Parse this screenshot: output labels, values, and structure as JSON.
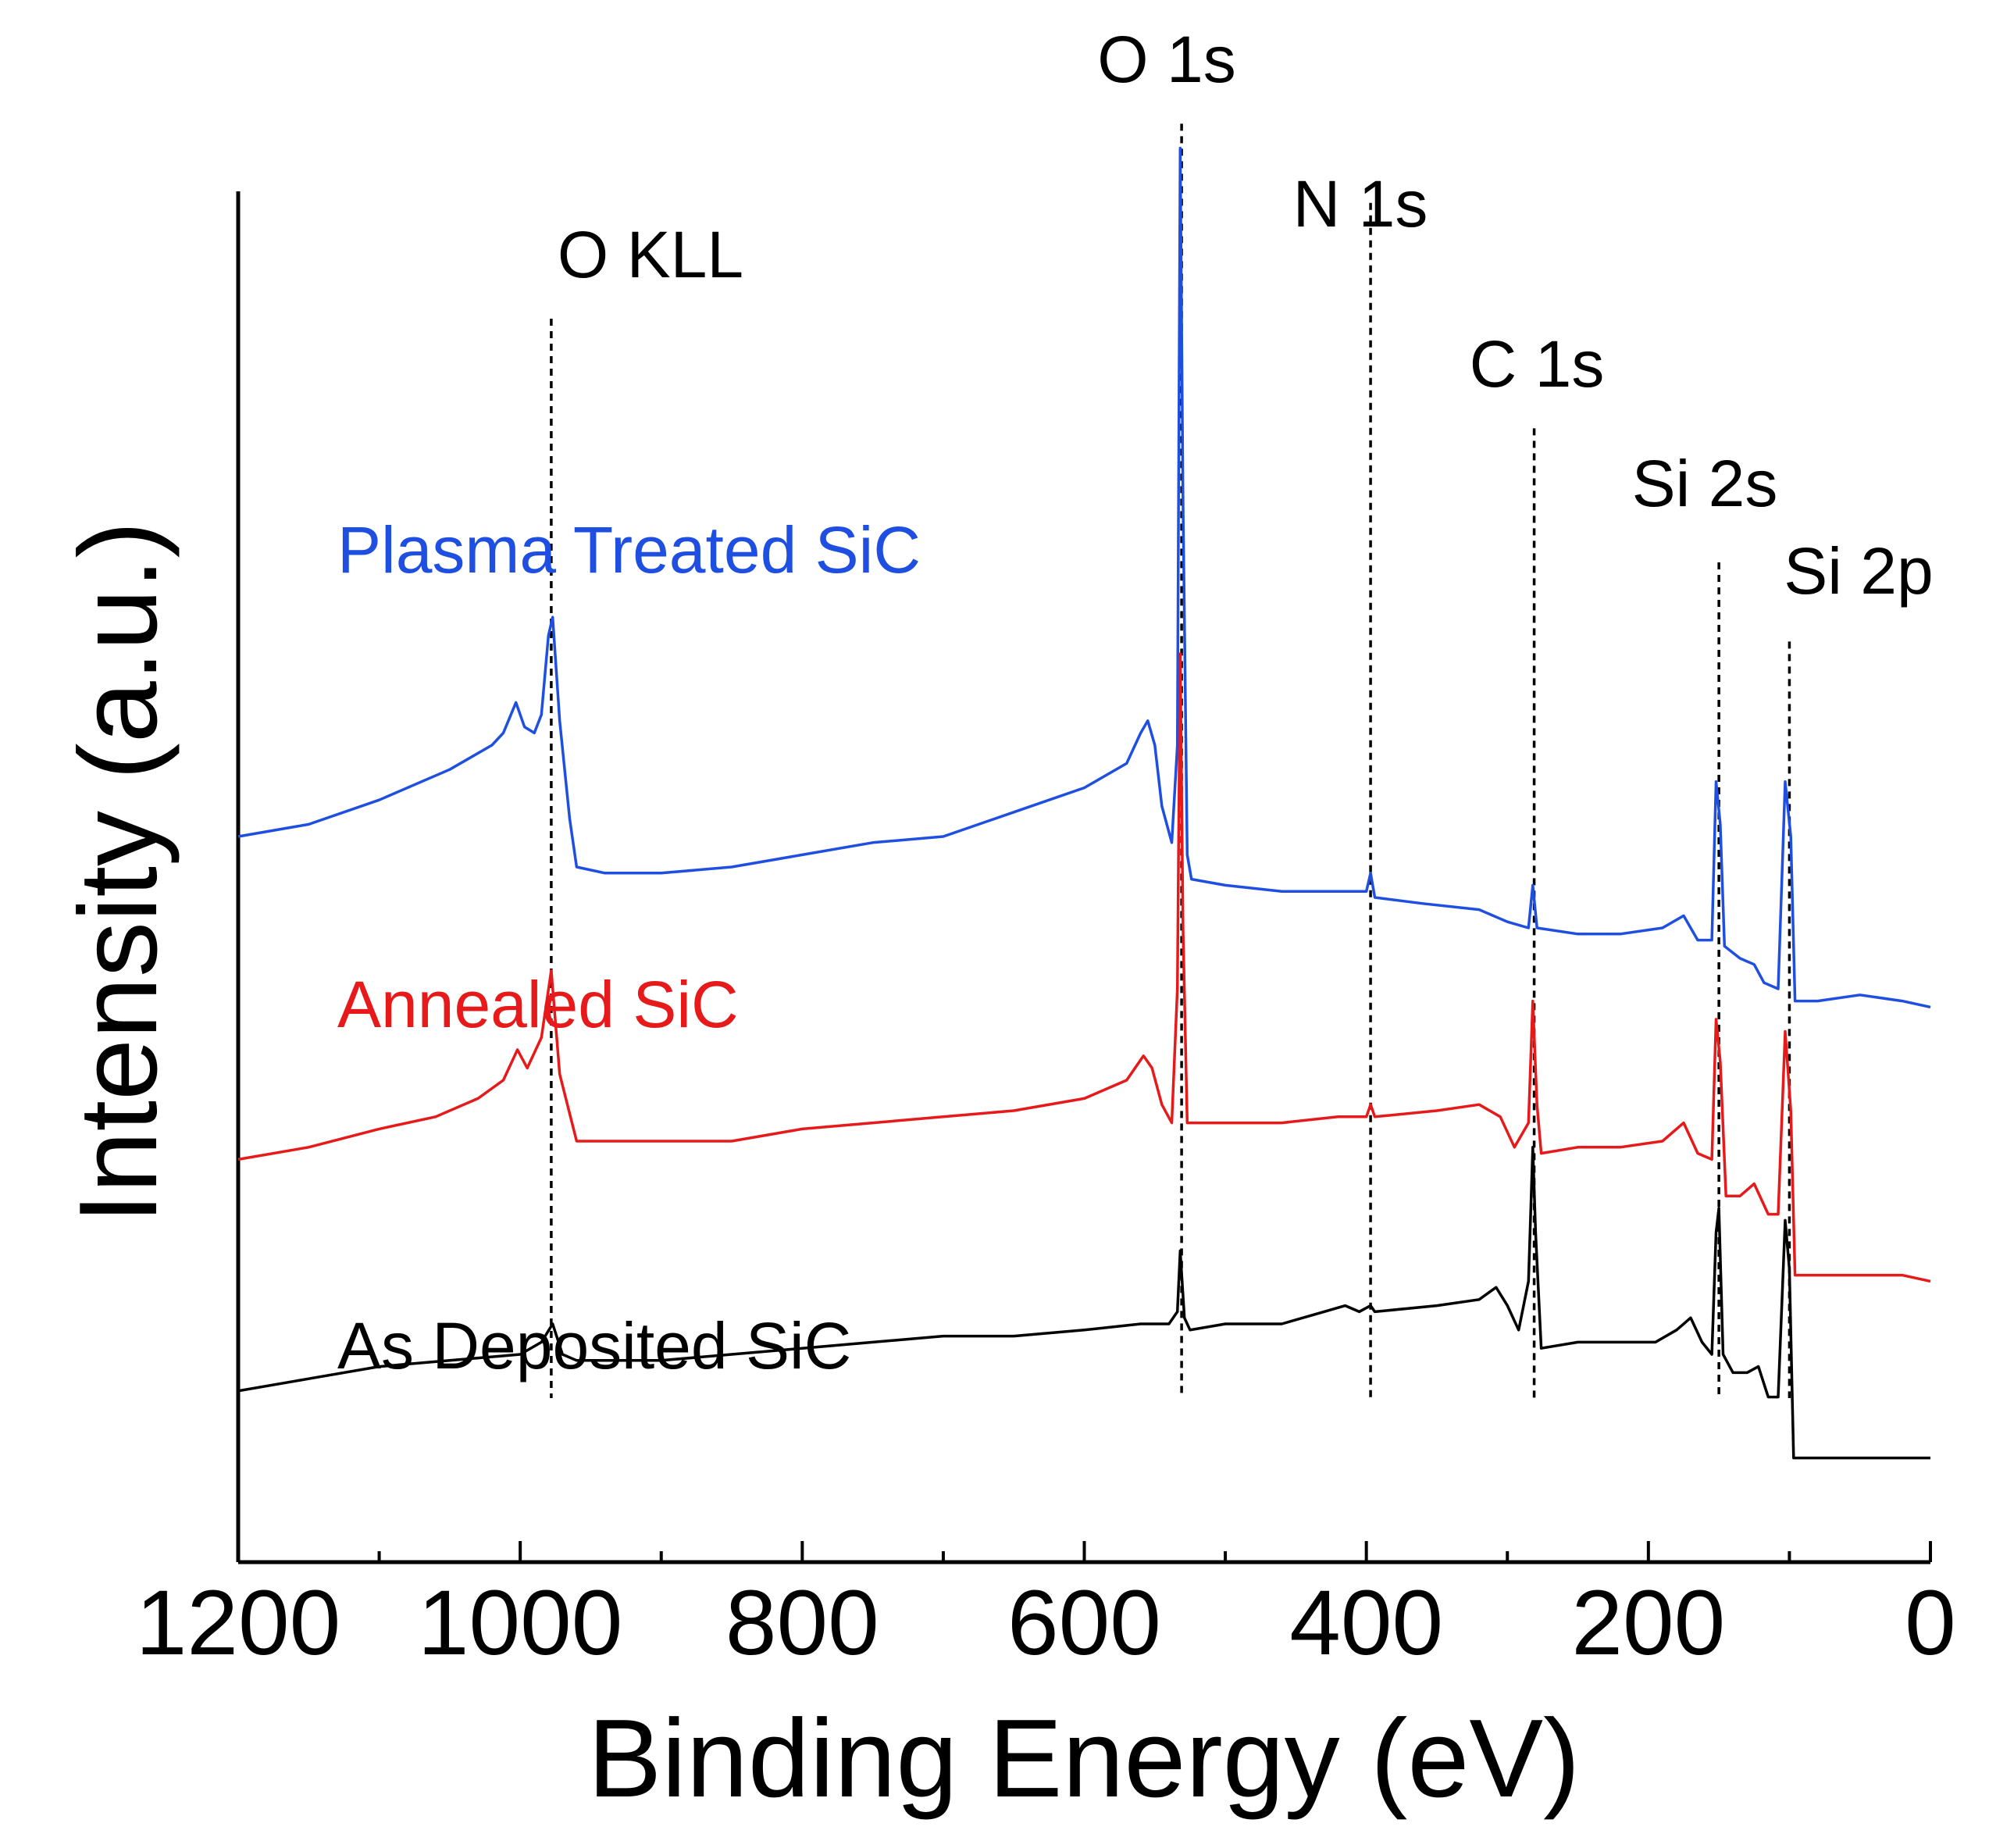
{
  "chart_data": {
    "type": "line",
    "title": "",
    "xlabel": "Binding Energy (eV)",
    "ylabel": "Intensity (a.u.)",
    "xlim": [
      1200,
      0
    ],
    "x_reversed": true,
    "x_ticks": [
      1200,
      1000,
      800,
      600,
      400,
      200,
      0
    ],
    "x_tick_labels": [
      "1200",
      "1000",
      "800",
      "600",
      "400",
      "200",
      "0"
    ],
    "y_ticks_shown": false,
    "grid": false,
    "legend": "inline labels",
    "peak_annotations": [
      {
        "label": "O KLL",
        "x": 978,
        "line_top": 1.9
      },
      {
        "label": "O 1s",
        "x": 531,
        "line_top": 2.22
      },
      {
        "label": "N 1s",
        "x": 397,
        "line_top": 2.09
      },
      {
        "label": "C 1s",
        "x": 281,
        "line_top": 1.72
      },
      {
        "label": "Si 2s",
        "x": 150,
        "line_top": 1.5
      },
      {
        "label": "Si 2p",
        "x": 100,
        "line_top": 1.37
      }
    ],
    "series": [
      {
        "name": "Plasma Treated SiC",
        "color": "#1f4fe0",
        "points": [
          [
            1200,
            1.05
          ],
          [
            1150,
            1.07
          ],
          [
            1100,
            1.11
          ],
          [
            1050,
            1.16
          ],
          [
            1020,
            1.2
          ],
          [
            1012,
            1.22
          ],
          [
            1003,
            1.27
          ],
          [
            997,
            1.23
          ],
          [
            990,
            1.22
          ],
          [
            985,
            1.25
          ],
          [
            980,
            1.38
          ],
          [
            977,
            1.41
          ],
          [
            972,
            1.24
          ],
          [
            965,
            1.08
          ],
          [
            960,
            1.0
          ],
          [
            940,
            0.99
          ],
          [
            900,
            0.99
          ],
          [
            850,
            1.0
          ],
          [
            800,
            1.02
          ],
          [
            750,
            1.04
          ],
          [
            700,
            1.05
          ],
          [
            650,
            1.09
          ],
          [
            600,
            1.13
          ],
          [
            570,
            1.17
          ],
          [
            560,
            1.22
          ],
          [
            555,
            1.24
          ],
          [
            550,
            1.2
          ],
          [
            545,
            1.1
          ],
          [
            538,
            1.04
          ],
          [
            534,
            1.2
          ],
          [
            532,
            2.18
          ],
          [
            530,
            1.6
          ],
          [
            527,
            1.02
          ],
          [
            524,
            0.98
          ],
          [
            500,
            0.97
          ],
          [
            460,
            0.96
          ],
          [
            420,
            0.96
          ],
          [
            400,
            0.96
          ],
          [
            397,
            0.99
          ],
          [
            394,
            0.95
          ],
          [
            360,
            0.94
          ],
          [
            320,
            0.93
          ],
          [
            300,
            0.91
          ],
          [
            285,
            0.9
          ],
          [
            282,
            0.97
          ],
          [
            279,
            0.9
          ],
          [
            250,
            0.89
          ],
          [
            220,
            0.89
          ],
          [
            190,
            0.9
          ],
          [
            175,
            0.92
          ],
          [
            165,
            0.88
          ],
          [
            155,
            0.88
          ],
          [
            152,
            1.14
          ],
          [
            149,
            1.07
          ],
          [
            146,
            0.87
          ],
          [
            135,
            0.85
          ],
          [
            125,
            0.84
          ],
          [
            118,
            0.81
          ],
          [
            108,
            0.8
          ],
          [
            103,
            1.14
          ],
          [
            99,
            1.05
          ],
          [
            96,
            0.78
          ],
          [
            80,
            0.78
          ],
          [
            50,
            0.79
          ],
          [
            20,
            0.78
          ],
          [
            0,
            0.77
          ]
        ]
      },
      {
        "name": "Annealed SiC",
        "color": "#e61a1a",
        "points": [
          [
            1200,
            0.52
          ],
          [
            1150,
            0.54
          ],
          [
            1100,
            0.57
          ],
          [
            1060,
            0.59
          ],
          [
            1030,
            0.62
          ],
          [
            1012,
            0.65
          ],
          [
            1002,
            0.7
          ],
          [
            995,
            0.67
          ],
          [
            985,
            0.72
          ],
          [
            978,
            0.83
          ],
          [
            972,
            0.66
          ],
          [
            960,
            0.55
          ],
          [
            940,
            0.55
          ],
          [
            900,
            0.55
          ],
          [
            850,
            0.55
          ],
          [
            800,
            0.57
          ],
          [
            750,
            0.58
          ],
          [
            700,
            0.59
          ],
          [
            650,
            0.6
          ],
          [
            600,
            0.62
          ],
          [
            570,
            0.65
          ],
          [
            558,
            0.69
          ],
          [
            552,
            0.67
          ],
          [
            545,
            0.61
          ],
          [
            538,
            0.58
          ],
          [
            534,
            0.8
          ],
          [
            532,
            1.35
          ],
          [
            530,
            0.9
          ],
          [
            527,
            0.58
          ],
          [
            500,
            0.58
          ],
          [
            460,
            0.58
          ],
          [
            420,
            0.59
          ],
          [
            400,
            0.59
          ],
          [
            397,
            0.61
          ],
          [
            394,
            0.59
          ],
          [
            350,
            0.6
          ],
          [
            320,
            0.61
          ],
          [
            305,
            0.59
          ],
          [
            295,
            0.54
          ],
          [
            285,
            0.58
          ],
          [
            282,
            0.78
          ],
          [
            279,
            0.61
          ],
          [
            276,
            0.53
          ],
          [
            250,
            0.54
          ],
          [
            220,
            0.54
          ],
          [
            190,
            0.55
          ],
          [
            175,
            0.58
          ],
          [
            165,
            0.53
          ],
          [
            155,
            0.52
          ],
          [
            152,
            0.75
          ],
          [
            149,
            0.68
          ],
          [
            145,
            0.46
          ],
          [
            135,
            0.46
          ],
          [
            125,
            0.48
          ],
          [
            115,
            0.43
          ],
          [
            108,
            0.43
          ],
          [
            103,
            0.73
          ],
          [
            99,
            0.6
          ],
          [
            96,
            0.33
          ],
          [
            80,
            0.33
          ],
          [
            50,
            0.33
          ],
          [
            20,
            0.33
          ],
          [
            0,
            0.32
          ]
        ]
      },
      {
        "name": "As Deposited SiC",
        "color": "#000000",
        "points": [
          [
            1200,
            0.14
          ],
          [
            1150,
            0.16
          ],
          [
            1100,
            0.18
          ],
          [
            1050,
            0.19
          ],
          [
            1000,
            0.2
          ],
          [
            985,
            0.22
          ],
          [
            977,
            0.25
          ],
          [
            970,
            0.2
          ],
          [
            960,
            0.19
          ],
          [
            900,
            0.19
          ],
          [
            850,
            0.2
          ],
          [
            800,
            0.21
          ],
          [
            750,
            0.22
          ],
          [
            700,
            0.23
          ],
          [
            650,
            0.23
          ],
          [
            600,
            0.24
          ],
          [
            560,
            0.25
          ],
          [
            540,
            0.25
          ],
          [
            534,
            0.27
          ],
          [
            532,
            0.37
          ],
          [
            529,
            0.26
          ],
          [
            525,
            0.24
          ],
          [
            500,
            0.25
          ],
          [
            460,
            0.25
          ],
          [
            430,
            0.27
          ],
          [
            415,
            0.28
          ],
          [
            405,
            0.27
          ],
          [
            397,
            0.28
          ],
          [
            394,
            0.27
          ],
          [
            350,
            0.28
          ],
          [
            320,
            0.29
          ],
          [
            308,
            0.31
          ],
          [
            300,
            0.28
          ],
          [
            292,
            0.24
          ],
          [
            285,
            0.32
          ],
          [
            282,
            0.54
          ],
          [
            280,
            0.4
          ],
          [
            276,
            0.21
          ],
          [
            250,
            0.22
          ],
          [
            220,
            0.22
          ],
          [
            195,
            0.22
          ],
          [
            180,
            0.24
          ],
          [
            170,
            0.26
          ],
          [
            162,
            0.22
          ],
          [
            155,
            0.2
          ],
          [
            152,
            0.4
          ],
          [
            150,
            0.44
          ],
          [
            147,
            0.2
          ],
          [
            140,
            0.17
          ],
          [
            130,
            0.17
          ],
          [
            122,
            0.18
          ],
          [
            115,
            0.13
          ],
          [
            108,
            0.13
          ],
          [
            103,
            0.42
          ],
          [
            100,
            0.34
          ],
          [
            97,
            0.03
          ],
          [
            80,
            0.03
          ],
          [
            50,
            0.03
          ],
          [
            20,
            0.03
          ],
          [
            0,
            0.03
          ]
        ]
      }
    ]
  },
  "series_labels": {
    "plasma": "Plasma Treated SiC",
    "annealed": "Annealed SiC",
    "as_deposited": "As Deposited SiC"
  },
  "axis_titles": {
    "x": "Binding Energy (eV)",
    "y": "Intensity (a.u.)"
  },
  "peaks": {
    "o_kll": "O KLL",
    "o_1s": "O 1s",
    "n_1s": "N 1s",
    "c_1s": "C 1s",
    "si_2s": "Si 2s",
    "si_2p": "Si 2p"
  },
  "x_tick_labels": [
    "1200",
    "1000",
    "800",
    "600",
    "400",
    "200",
    "0"
  ],
  "colors": {
    "plasma": "#1f4fe0",
    "annealed": "#e61a1a",
    "as_deposited": "#000000"
  }
}
